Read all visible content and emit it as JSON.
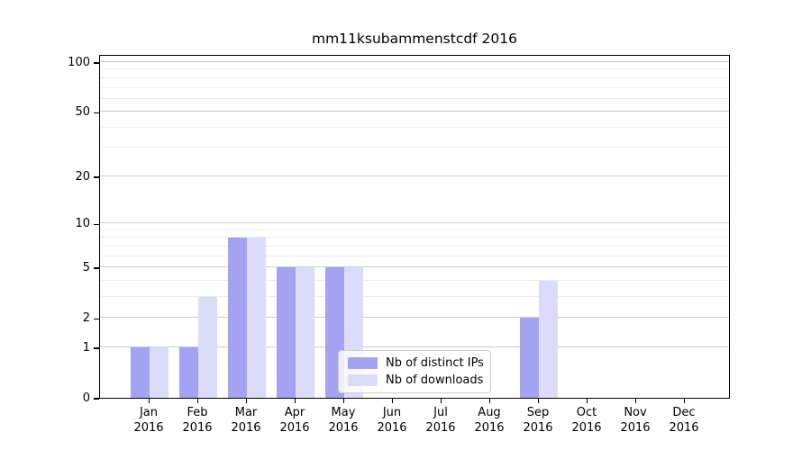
{
  "chart_data": {
    "type": "bar",
    "title": "mm11ksubammenstcdf 2016",
    "categories": [
      "Jan",
      "Feb",
      "Mar",
      "Apr",
      "May",
      "Jun",
      "Jul",
      "Aug",
      "Sep",
      "Oct",
      "Nov",
      "Dec"
    ],
    "year_label": "2016",
    "series": [
      {
        "name": "Nb of distinct IPs",
        "color": "#a3a3f1",
        "values": [
          1,
          1,
          8,
          5,
          5,
          0,
          0,
          0,
          2,
          0,
          0,
          0
        ]
      },
      {
        "name": "Nb of downloads",
        "color": "#dbdbfa",
        "values": [
          1,
          3,
          8,
          5,
          5,
          0,
          0,
          0,
          4,
          0,
          0,
          0
        ]
      }
    ],
    "yscale": "log1p",
    "yticks_major": [
      0,
      1,
      2,
      5,
      10,
      20,
      50,
      100
    ],
    "yticks_minor": [
      3,
      4,
      6,
      7,
      8,
      9,
      30,
      40,
      60,
      70,
      80,
      90
    ],
    "ylim": [
      0,
      112
    ],
    "grid": true,
    "legend_position": "lower-center",
    "colors": {
      "axis": "#000000",
      "grid_major": "#cccccc",
      "grid_minor": "#ededed"
    }
  }
}
